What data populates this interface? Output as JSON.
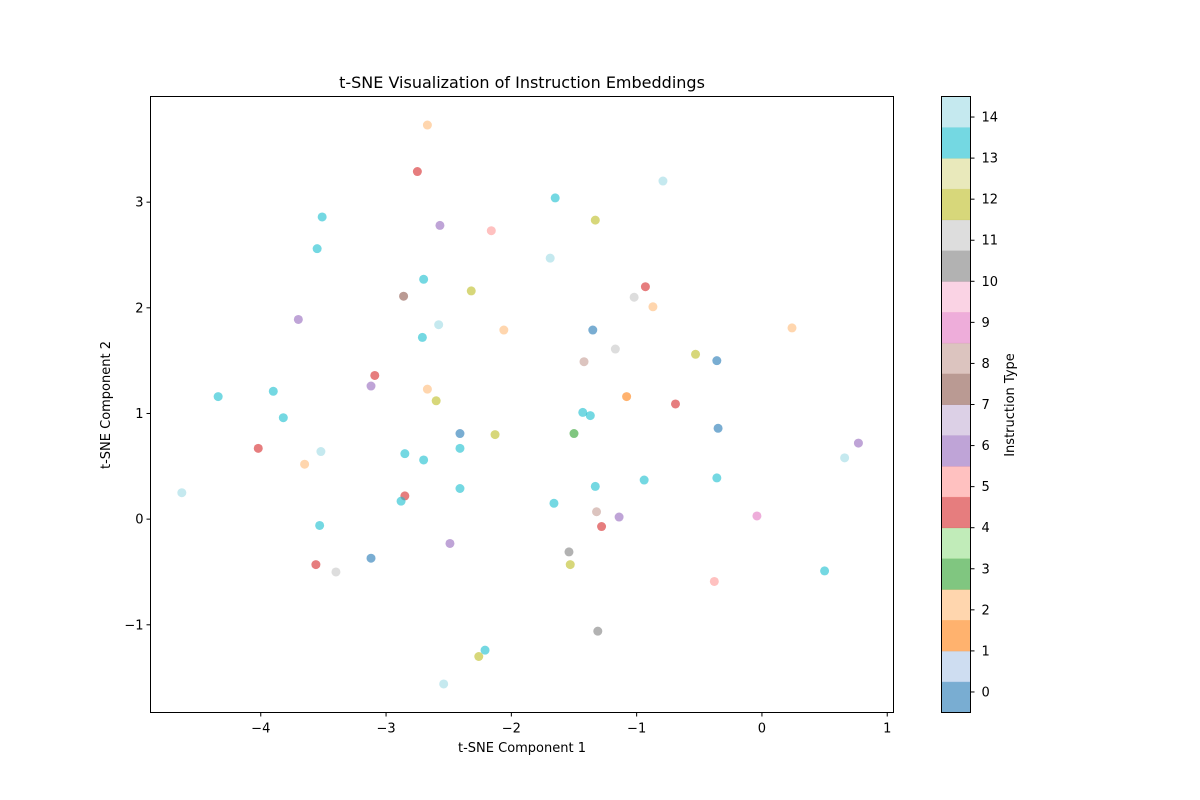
{
  "chart_data": {
    "type": "scatter",
    "title": "t-SNE Visualization of Instruction Embeddings",
    "xlabel": "t-SNE Component 1",
    "ylabel": "t-SNE Component 2",
    "xlim": [
      -4.88,
      1.05
    ],
    "ylim": [
      -1.83,
      4.0
    ],
    "xticks": [
      -4,
      -3,
      -2,
      -1,
      0,
      1
    ],
    "yticks": [
      -1,
      0,
      1,
      2,
      3
    ],
    "grid": false,
    "colorbar": {
      "label": "Instruction Type",
      "ticks": [
        0,
        1,
        2,
        3,
        4,
        5,
        6,
        7,
        8,
        9,
        10,
        11,
        12,
        13,
        14
      ],
      "range": [
        -0.5,
        14.5
      ],
      "colors": [
        "#1f77b4",
        "#aec7e8",
        "#ff7f0e",
        "#ffbb78",
        "#2ca02c",
        "#98df8a",
        "#d62728",
        "#ff9896",
        "#9467bd",
        "#c5b0d5",
        "#8c564b",
        "#c49c94",
        "#e377c2",
        "#f7b6d2",
        "#7f7f7f",
        "#c7c7c7",
        "#bcbd22",
        "#dbdb8d",
        "#17becf",
        "#9edae5"
      ]
    },
    "points": [
      {
        "x": -2.67,
        "y": 3.73,
        "type": 2
      },
      {
        "x": -2.75,
        "y": 3.29,
        "type": 4
      },
      {
        "x": -0.79,
        "y": 3.2,
        "type": 14
      },
      {
        "x": -1.65,
        "y": 3.04,
        "type": 13
      },
      {
        "x": -3.51,
        "y": 2.86,
        "type": 13
      },
      {
        "x": -1.33,
        "y": 2.83,
        "type": 12
      },
      {
        "x": -2.57,
        "y": 2.78,
        "type": 6
      },
      {
        "x": -2.16,
        "y": 2.73,
        "type": 5
      },
      {
        "x": -3.55,
        "y": 2.56,
        "type": 13
      },
      {
        "x": -1.69,
        "y": 2.47,
        "type": 14
      },
      {
        "x": -2.7,
        "y": 2.27,
        "type": 13
      },
      {
        "x": -0.93,
        "y": 2.2,
        "type": 4
      },
      {
        "x": -2.32,
        "y": 2.16,
        "type": 12
      },
      {
        "x": -2.86,
        "y": 2.11,
        "type": 7
      },
      {
        "x": -1.02,
        "y": 2.1,
        "type": 11
      },
      {
        "x": -0.87,
        "y": 2.01,
        "type": 2
      },
      {
        "x": -3.7,
        "y": 1.89,
        "type": 6
      },
      {
        "x": -2.58,
        "y": 1.84,
        "type": 14
      },
      {
        "x": -2.06,
        "y": 1.79,
        "type": 2
      },
      {
        "x": -1.35,
        "y": 1.79,
        "type": 0
      },
      {
        "x": 0.24,
        "y": 1.81,
        "type": 2
      },
      {
        "x": -2.71,
        "y": 1.72,
        "type": 13
      },
      {
        "x": -1.17,
        "y": 1.61,
        "type": 11
      },
      {
        "x": -0.53,
        "y": 1.56,
        "type": 12
      },
      {
        "x": -0.36,
        "y": 1.5,
        "type": 0
      },
      {
        "x": -1.42,
        "y": 1.49,
        "type": 8
      },
      {
        "x": -3.09,
        "y": 1.36,
        "type": 4
      },
      {
        "x": -3.12,
        "y": 1.26,
        "type": 6
      },
      {
        "x": -2.67,
        "y": 1.23,
        "type": 2
      },
      {
        "x": -3.9,
        "y": 1.21,
        "type": 13
      },
      {
        "x": -4.34,
        "y": 1.16,
        "type": 13
      },
      {
        "x": -1.08,
        "y": 1.16,
        "type": 1
      },
      {
        "x": -2.6,
        "y": 1.12,
        "type": 12
      },
      {
        "x": -0.69,
        "y": 1.09,
        "type": 4
      },
      {
        "x": -1.43,
        "y": 1.01,
        "type": 13
      },
      {
        "x": -1.37,
        "y": 0.98,
        "type": 13
      },
      {
        "x": -3.82,
        "y": 0.96,
        "type": 13
      },
      {
        "x": -0.35,
        "y": 0.86,
        "type": 0
      },
      {
        "x": -2.41,
        "y": 0.81,
        "type": 0
      },
      {
        "x": -2.13,
        "y": 0.8,
        "type": 12
      },
      {
        "x": -1.5,
        "y": 0.81,
        "type": 3
      },
      {
        "x": 0.77,
        "y": 0.72,
        "type": 6
      },
      {
        "x": -4.02,
        "y": 0.67,
        "type": 4
      },
      {
        "x": -2.41,
        "y": 0.67,
        "type": 13
      },
      {
        "x": -3.52,
        "y": 0.64,
        "type": 14
      },
      {
        "x": -2.85,
        "y": 0.62,
        "type": 13
      },
      {
        "x": 0.66,
        "y": 0.58,
        "type": 14
      },
      {
        "x": -2.7,
        "y": 0.56,
        "type": 13
      },
      {
        "x": -3.65,
        "y": 0.52,
        "type": 2
      },
      {
        "x": -0.94,
        "y": 0.37,
        "type": 13
      },
      {
        "x": -0.36,
        "y": 0.39,
        "type": 13
      },
      {
        "x": -1.33,
        "y": 0.31,
        "type": 13
      },
      {
        "x": -2.41,
        "y": 0.29,
        "type": 13
      },
      {
        "x": -4.63,
        "y": 0.25,
        "type": 14
      },
      {
        "x": -2.85,
        "y": 0.22,
        "type": 4
      },
      {
        "x": -2.88,
        "y": 0.17,
        "type": 13
      },
      {
        "x": -1.66,
        "y": 0.15,
        "type": 13
      },
      {
        "x": -1.32,
        "y": 0.07,
        "type": 8
      },
      {
        "x": -0.04,
        "y": 0.03,
        "type": 9
      },
      {
        "x": -1.14,
        "y": 0.02,
        "type": 6
      },
      {
        "x": -3.53,
        "y": -0.06,
        "type": 13
      },
      {
        "x": -1.28,
        "y": -0.07,
        "type": 4
      },
      {
        "x": -2.49,
        "y": -0.23,
        "type": 6
      },
      {
        "x": -1.54,
        "y": -0.31,
        "type": 10
      },
      {
        "x": -3.12,
        "y": -0.37,
        "type": 0
      },
      {
        "x": -3.56,
        "y": -0.43,
        "type": 4
      },
      {
        "x": -1.53,
        "y": -0.43,
        "type": 12
      },
      {
        "x": -3.4,
        "y": -0.5,
        "type": 11
      },
      {
        "x": 0.5,
        "y": -0.49,
        "type": 13
      },
      {
        "x": -0.38,
        "y": -0.59,
        "type": 5
      },
      {
        "x": -1.31,
        "y": -1.06,
        "type": 10
      },
      {
        "x": -2.21,
        "y": -1.24,
        "type": 13
      },
      {
        "x": -2.26,
        "y": -1.3,
        "type": 12
      },
      {
        "x": -2.54,
        "y": -1.56,
        "type": 14
      }
    ]
  }
}
